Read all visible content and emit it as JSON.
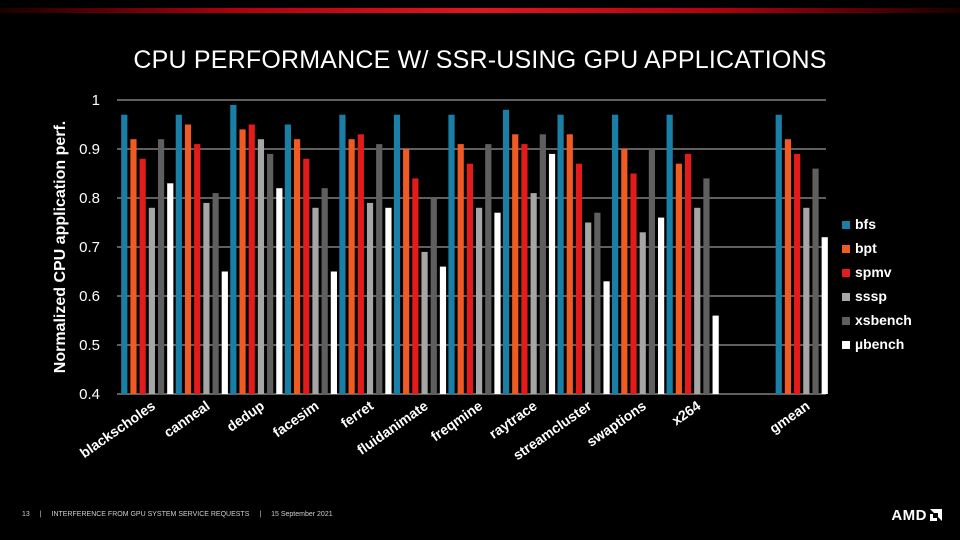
{
  "slide": {
    "title": "CPU PERFORMANCE W/ SSR-USING GPU APPLICATIONS",
    "page_number": "13",
    "footer_sep": "|",
    "footer_text": "INTERFERENCE FROM GPU SYSTEM SERVICE REQUESTS",
    "footer_date": "15 September 2021",
    "logo": "AMD"
  },
  "colors": {
    "bfs": "#1a7fa6",
    "bpt": "#f05a23",
    "spmv": "#e31b1b",
    "sssp": "#a6a6a6",
    "xsbench": "#5f5f5f",
    "ubench": "#ffffff",
    "grid": "#bfbfbf",
    "text": "#ffffff",
    "accent": "#e31621"
  },
  "chart_data": {
    "type": "bar",
    "title": "CPU PERFORMANCE W/ SSR-USING GPU APPLICATIONS",
    "xlabel": "",
    "ylabel": "Normalized CPU application perf.",
    "ylim": [
      0.4,
      1
    ],
    "yticks": [
      "1",
      "0.9",
      "0.8",
      "0.7",
      "0.6",
      "0.5",
      "0.4"
    ],
    "grid": true,
    "legend_position": "right",
    "categories": [
      "blackscholes",
      "canneal",
      "dedup",
      "facesim",
      "ferret",
      "fluidanimate",
      "freqmine",
      "raytrace",
      "streamcluster",
      "swaptions",
      "x264",
      "",
      "gmean"
    ],
    "series": [
      {
        "name": "bfs",
        "values": [
          0.97,
          0.97,
          0.99,
          0.95,
          0.97,
          0.97,
          0.97,
          0.98,
          0.97,
          0.97,
          0.97,
          null,
          0.97
        ]
      },
      {
        "name": "bpt",
        "values": [
          0.92,
          0.95,
          0.94,
          0.92,
          0.92,
          0.9,
          0.91,
          0.93,
          0.93,
          0.9,
          0.87,
          null,
          0.92
        ]
      },
      {
        "name": "spmv",
        "values": [
          0.88,
          0.91,
          0.95,
          0.88,
          0.93,
          0.84,
          0.87,
          0.91,
          0.87,
          0.85,
          0.89,
          null,
          0.89
        ]
      },
      {
        "name": "sssp",
        "values": [
          0.78,
          0.79,
          0.92,
          0.78,
          0.79,
          0.69,
          0.78,
          0.81,
          0.75,
          0.73,
          0.78,
          null,
          0.78
        ]
      },
      {
        "name": "xsbench",
        "values": [
          0.92,
          0.81,
          0.89,
          0.82,
          0.91,
          0.8,
          0.91,
          0.93,
          0.77,
          0.9,
          0.84,
          null,
          0.86
        ]
      },
      {
        "name": "µbench",
        "values": [
          0.83,
          0.65,
          0.82,
          0.65,
          0.78,
          0.66,
          0.77,
          0.89,
          0.63,
          0.76,
          0.56,
          null,
          0.72
        ]
      }
    ]
  }
}
